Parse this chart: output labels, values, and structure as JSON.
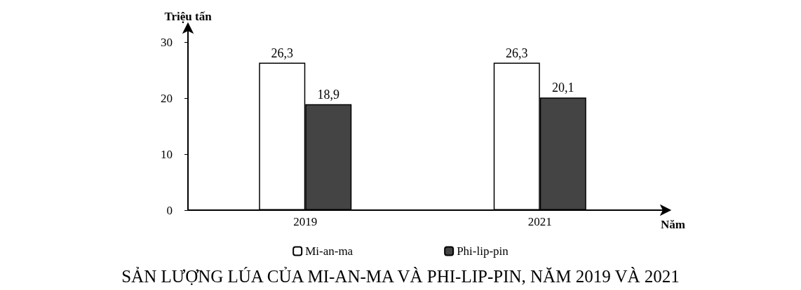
{
  "chart_data": {
    "type": "bar",
    "title": "SẢN LƯỢNG LÚA CỦA MI-AN-MA VÀ PHI-LIP-PIN, NĂM 2019 VÀ 2021",
    "xlabel": "Năm",
    "ylabel": "Triệu tấn",
    "categories": [
      "2019",
      "2021"
    ],
    "series": [
      {
        "name": "Mi-an-ma",
        "color": "#ffffff",
        "values": [
          26.3,
          26.3
        ],
        "value_labels": [
          "26,3",
          "26,3"
        ]
      },
      {
        "name": "Phi-lip-pin",
        "color": "#444444",
        "values": [
          18.9,
          20.1
        ],
        "value_labels": [
          "18,9",
          "20,1"
        ]
      }
    ],
    "ylim": [
      0,
      30
    ],
    "yticks": [
      0,
      10,
      20,
      30
    ],
    "grid": false,
    "legend": "bottom"
  }
}
